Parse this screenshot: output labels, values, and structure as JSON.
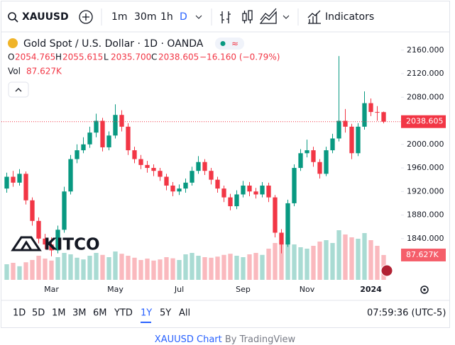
{
  "toolbar": {
    "symbol": "XAUUSD",
    "intervals": [
      "1m",
      "30m",
      "1h",
      "D"
    ],
    "indicators": "Indicators"
  },
  "legend": {
    "ohlc_labels": [
      "O",
      "H",
      "L",
      "C"
    ],
    "ohlc_values": [
      "2054.765",
      "2055.615",
      "2035.700",
      "2038.605"
    ],
    "change": "−16.160 (−0.79%)",
    "volume_title": "Vol"
  },
  "chart_data": {
    "type": "candlestick",
    "title": "Gold Spot / U.S. Dollar · 1D · OANDA",
    "categories": [
      null,
      null,
      null,
      null,
      null,
      null,
      null,
      "Mar",
      null,
      null,
      null,
      null,
      null,
      null,
      null,
      null,
      null,
      "May",
      null,
      null,
      null,
      null,
      null,
      null,
      null,
      null,
      null,
      "Jul",
      null,
      null,
      null,
      null,
      null,
      null,
      null,
      null,
      null,
      "Sep",
      null,
      null,
      null,
      null,
      null,
      null,
      null,
      null,
      null,
      "Nov",
      null,
      null,
      null,
      null,
      null,
      null,
      null,
      null,
      null,
      "2024",
      null,
      null
    ],
    "open": [
      1925,
      1945,
      1935,
      1950,
      1905,
      1870,
      1840,
      1830,
      1820,
      1855,
      1920,
      1975,
      1990,
      2000,
      2020,
      2040,
      1995,
      2015,
      2050,
      2030,
      1990,
      1975,
      1965,
      1960,
      1955,
      1945,
      1930,
      1920,
      1925,
      1935,
      1955,
      1970,
      1955,
      1940,
      1925,
      1910,
      1895,
      1915,
      1930,
      1920,
      1915,
      1930,
      1910,
      1850,
      1830,
      1900,
      1960,
      1985,
      1990,
      1970,
      1950,
      1990,
      2010,
      2040,
      2030,
      1985,
      2030,
      2070,
      2055,
      2054.765
    ],
    "high": [
      1952,
      1955,
      1958,
      1954,
      1910,
      1876,
      1848,
      1842,
      1862,
      1928,
      1982,
      2000,
      2012,
      2030,
      2052,
      2045,
      2022,
      2068,
      2058,
      2036,
      1996,
      1982,
      1972,
      1966,
      1960,
      1950,
      1936,
      1932,
      1942,
      1962,
      1980,
      1975,
      1960,
      1945,
      1930,
      1916,
      1922,
      1938,
      1936,
      1926,
      1936,
      1935,
      1914,
      1856,
      1906,
      1966,
      1992,
      2008,
      1996,
      1975,
      1996,
      2018,
      2150,
      2060,
      2035,
      2036,
      2090,
      2078,
      2065,
      2055.615
    ],
    "low": [
      1918,
      1928,
      1930,
      1898,
      1862,
      1832,
      1822,
      1810,
      1815,
      1850,
      1915,
      1968,
      1985,
      1994,
      2012,
      1988,
      1990,
      2010,
      2022,
      1982,
      1968,
      1958,
      1952,
      1946,
      1938,
      1922,
      1912,
      1914,
      1918,
      1930,
      1950,
      1948,
      1932,
      1918,
      1902,
      1888,
      1890,
      1910,
      1912,
      1908,
      1910,
      1902,
      1842,
      1815,
      1826,
      1895,
      1955,
      1978,
      1962,
      1942,
      1946,
      1985,
      2005,
      2020,
      1975,
      1980,
      2025,
      2048,
      2040,
      2035.7
    ],
    "close": [
      1945,
      1935,
      1950,
      1905,
      1870,
      1840,
      1830,
      1820,
      1855,
      1920,
      1975,
      1990,
      2000,
      2020,
      2040,
      1995,
      2015,
      2050,
      2030,
      1990,
      1975,
      1965,
      1960,
      1955,
      1945,
      1930,
      1920,
      1925,
      1935,
      1955,
      1970,
      1955,
      1940,
      1925,
      1910,
      1895,
      1915,
      1930,
      1920,
      1915,
      1930,
      1910,
      1850,
      1830,
      1900,
      1960,
      1985,
      1990,
      1970,
      1950,
      1990,
      2010,
      2040,
      2030,
      1985,
      2030,
      2070,
      2055,
      2054.765,
      2038.605
    ],
    "volume": [
      55,
      60,
      48,
      62,
      70,
      85,
      75,
      68,
      80,
      95,
      90,
      78,
      72,
      85,
      95,
      88,
      80,
      100,
      92,
      85,
      78,
      70,
      75,
      68,
      72,
      80,
      76,
      70,
      90,
      95,
      85,
      80,
      78,
      82,
      88,
      92,
      85,
      80,
      90,
      95,
      88,
      110,
      130,
      140,
      150,
      125,
      115,
      110,
      120,
      135,
      140,
      130,
      175,
      160,
      150,
      145,
      165,
      140,
      120,
      87.627
    ],
    "volume_label": "87.627K",
    "ylim": [
      1770,
      2191
    ],
    "yticks": [
      {
        "value": 1840,
        "label": "1840.000"
      },
      {
        "value": 1880,
        "label": "1880.000"
      },
      {
        "value": 1920,
        "label": "1920.000"
      },
      {
        "value": 1960,
        "label": "1960.000"
      },
      {
        "value": 2000,
        "label": "2000.000"
      },
      {
        "value": 2040,
        "label": "2040.000"
      },
      {
        "value": 2080,
        "label": "2080.000"
      },
      {
        "value": 2120,
        "label": "2120.000"
      },
      {
        "value": 2160,
        "label": "2160.000"
      }
    ],
    "up_color": "#089981",
    "down_color": "#f23645"
  },
  "watermark": "KITCO",
  "ranges": [
    "1D",
    "5D",
    "1M",
    "3M",
    "6M",
    "YTD",
    "1Y",
    "5Y",
    "All"
  ],
  "active_range": 6,
  "clock": "07:59:36 (UTC-5)",
  "footer": {
    "symbol": "XAUUSD Chart",
    "by": "By TradingView"
  }
}
